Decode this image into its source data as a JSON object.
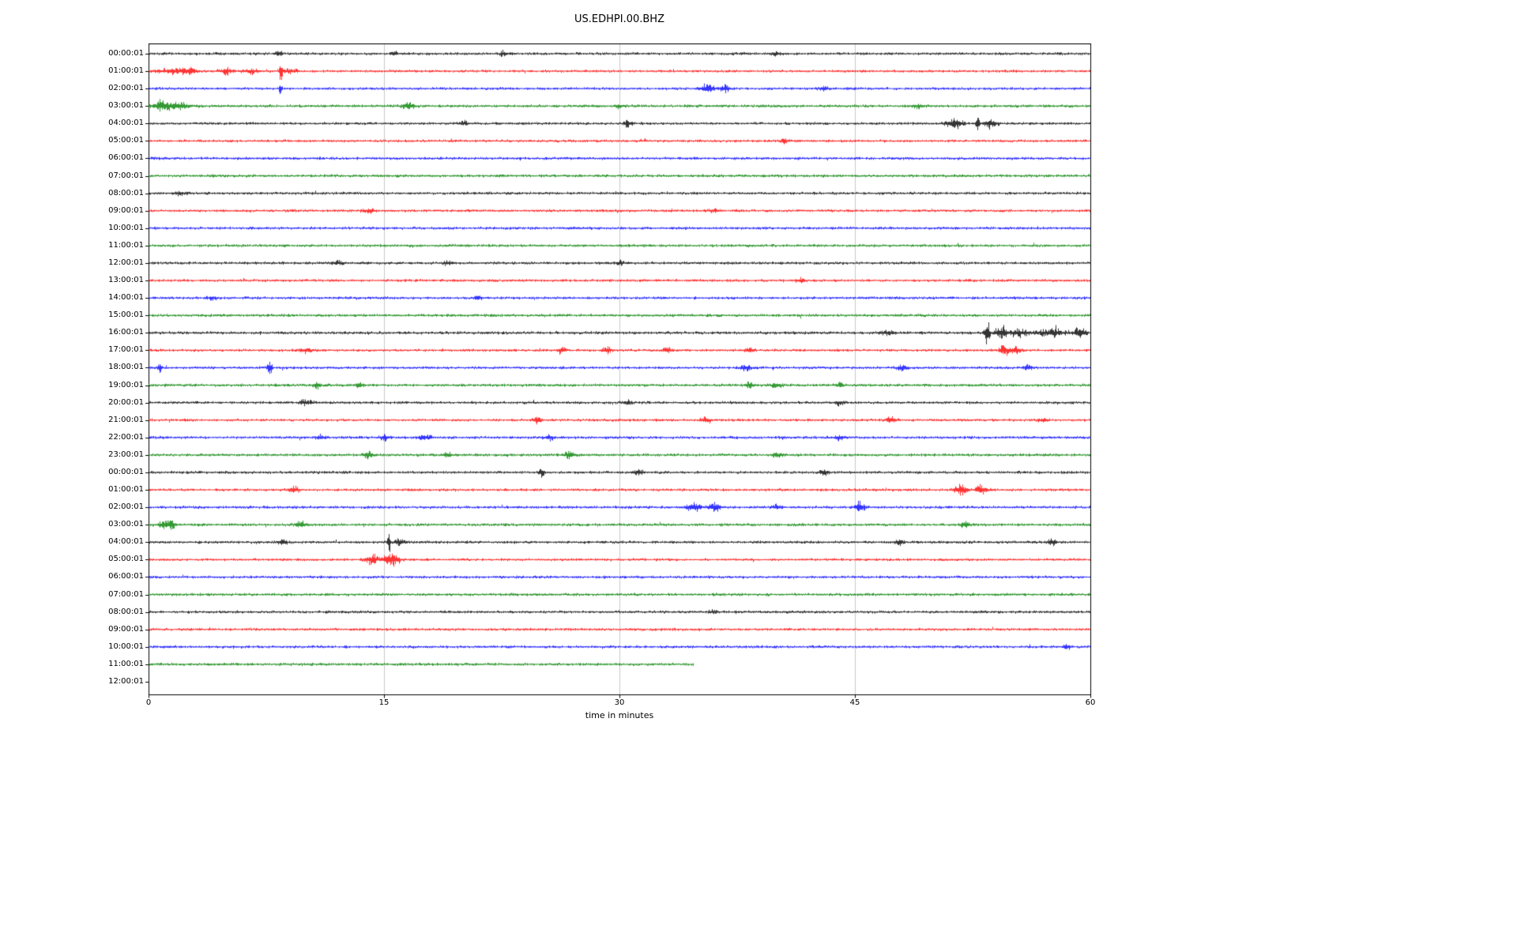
{
  "title": "US.EDHPI.00.BHZ",
  "chart_data": {
    "type": "line",
    "subtype": "seismogram-dayplot",
    "title": "US.EDHPI.00.BHZ",
    "xlabel": "time in minutes",
    "x_range": [
      0,
      60
    ],
    "x_ticks": [
      0,
      15,
      30,
      45,
      60
    ],
    "grid_x": [
      15,
      30,
      45
    ],
    "grid_color": "#c8c8c8",
    "trace_colors_cycle": [
      "#000000",
      "#ff0000",
      "#0000ff",
      "#008000"
    ],
    "rows": [
      {
        "label": "00:00:01",
        "color": "#000000",
        "end_minute": 60,
        "base": 1.2,
        "events": [
          [
            8.3,
            2.5,
            0.2
          ],
          [
            15.6,
            2.2,
            0.2
          ],
          [
            22.6,
            2.2,
            0.2
          ],
          [
            40,
            1.5,
            0.3
          ]
        ]
      },
      {
        "label": "01:00:01",
        "color": "#ff0000",
        "end_minute": 60,
        "base": 1.15,
        "events": [
          [
            1.5,
            2,
            1.2
          ],
          [
            2.7,
            2.5,
            0.4
          ],
          [
            4.9,
            2.5,
            0.4
          ],
          [
            6.5,
            2,
            0.5
          ],
          [
            8.4,
            10,
            0.1
          ],
          [
            9,
            1.5,
            0.5
          ]
        ]
      },
      {
        "label": "02:00:01",
        "color": "#0000ff",
        "end_minute": 60,
        "base": 1.15,
        "events": [
          [
            8.4,
            4,
            0.1
          ],
          [
            35.6,
            4,
            0.4
          ],
          [
            36.7,
            3,
            0.3
          ],
          [
            43,
            1.8,
            0.3
          ]
        ]
      },
      {
        "label": "03:00:01",
        "color": "#008000",
        "end_minute": 60,
        "base": 1.25,
        "events": [
          [
            0.8,
            4,
            0.5
          ],
          [
            1.8,
            3.5,
            0.7
          ],
          [
            16.5,
            3,
            0.4
          ],
          [
            30,
            1.5,
            0.3
          ],
          [
            49,
            1.8,
            0.3
          ]
        ]
      },
      {
        "label": "04:00:01",
        "color": "#000000",
        "end_minute": 60,
        "base": 1.15,
        "events": [
          [
            20,
            1.8,
            0.3
          ],
          [
            30.5,
            2.5,
            0.25
          ],
          [
            51.3,
            3.5,
            0.6
          ],
          [
            52.8,
            10,
            0.12
          ],
          [
            53.6,
            4,
            0.4
          ]
        ]
      },
      {
        "label": "05:00:01",
        "color": "#ff0000",
        "end_minute": 60,
        "base": 1.15,
        "events": [
          [
            40.5,
            1.5,
            0.3
          ]
        ]
      },
      {
        "label": "06:00:01",
        "color": "#0000ff",
        "end_minute": 60,
        "base": 1.2,
        "events": []
      },
      {
        "label": "07:00:01",
        "color": "#008000",
        "end_minute": 60,
        "base": 1.25,
        "events": []
      },
      {
        "label": "08:00:01",
        "color": "#000000",
        "end_minute": 60,
        "base": 1.2,
        "events": [
          [
            2,
            1.5,
            0.3
          ]
        ]
      },
      {
        "label": "09:00:01",
        "color": "#ff0000",
        "end_minute": 60,
        "base": 1.15,
        "events": [
          [
            14,
            1.8,
            0.4
          ],
          [
            36,
            1.5,
            0.3
          ]
        ]
      },
      {
        "label": "10:00:01",
        "color": "#0000ff",
        "end_minute": 60,
        "base": 1.2,
        "events": []
      },
      {
        "label": "11:00:01",
        "color": "#008000",
        "end_minute": 60,
        "base": 1.2,
        "events": []
      },
      {
        "label": "12:00:01",
        "color": "#000000",
        "end_minute": 60,
        "base": 1.2,
        "events": [
          [
            12,
            1.5,
            0.4
          ],
          [
            19,
            1.5,
            0.3
          ],
          [
            30,
            1.4,
            0.3
          ]
        ]
      },
      {
        "label": "13:00:01",
        "color": "#ff0000",
        "end_minute": 60,
        "base": 1.15,
        "events": [
          [
            41.5,
            1.6,
            0.3
          ]
        ]
      },
      {
        "label": "14:00:01",
        "color": "#0000ff",
        "end_minute": 60,
        "base": 1.2,
        "events": [
          [
            4,
            1.5,
            0.3
          ],
          [
            21,
            1.4,
            0.3
          ]
        ]
      },
      {
        "label": "15:00:01",
        "color": "#008000",
        "end_minute": 60,
        "base": 1.25,
        "events": []
      },
      {
        "label": "16:00:01",
        "color": "#000000",
        "end_minute": 60,
        "base": 1.25,
        "events": [
          [
            47,
            2,
            0.4
          ],
          [
            53.4,
            9,
            0.18
          ],
          [
            54.3,
            5,
            0.4
          ],
          [
            55.5,
            3,
            0.6
          ],
          [
            57.5,
            3,
            0.8
          ],
          [
            59.3,
            4,
            0.4
          ]
        ]
      },
      {
        "label": "17:00:01",
        "color": "#ff0000",
        "end_minute": 60,
        "base": 1.15,
        "events": [
          [
            10,
            2,
            0.3
          ],
          [
            26.3,
            2.8,
            0.25
          ],
          [
            29.2,
            2.8,
            0.25
          ],
          [
            33,
            2,
            0.3
          ],
          [
            38.2,
            2.2,
            0.3
          ],
          [
            54.5,
            4.5,
            0.3
          ],
          [
            55.3,
            3,
            0.3
          ]
        ]
      },
      {
        "label": "18:00:01",
        "color": "#0000ff",
        "end_minute": 60,
        "base": 1.2,
        "events": [
          [
            0.7,
            4.5,
            0.15
          ],
          [
            7.7,
            5.5,
            0.15
          ],
          [
            38,
            2.5,
            0.3
          ],
          [
            48,
            2.5,
            0.3
          ],
          [
            56,
            2,
            0.3
          ]
        ]
      },
      {
        "label": "19:00:01",
        "color": "#008000",
        "end_minute": 60,
        "base": 1.25,
        "events": [
          [
            10.7,
            3,
            0.25
          ],
          [
            13.4,
            2.8,
            0.25
          ],
          [
            38.3,
            2.5,
            0.3
          ],
          [
            40,
            2.5,
            0.3
          ],
          [
            44,
            2,
            0.3
          ]
        ]
      },
      {
        "label": "20:00:01",
        "color": "#000000",
        "end_minute": 60,
        "base": 1.2,
        "events": [
          [
            10,
            2,
            0.4
          ],
          [
            30.5,
            2,
            0.3
          ],
          [
            44,
            1.8,
            0.3
          ]
        ]
      },
      {
        "label": "21:00:01",
        "color": "#ff0000",
        "end_minute": 60,
        "base": 1.15,
        "events": [
          [
            24.7,
            3.5,
            0.25
          ],
          [
            35.5,
            2.5,
            0.3
          ],
          [
            47.3,
            3.2,
            0.3
          ],
          [
            57,
            2,
            0.3
          ]
        ]
      },
      {
        "label": "22:00:01",
        "color": "#0000ff",
        "end_minute": 60,
        "base": 1.2,
        "events": [
          [
            11,
            2,
            0.3
          ],
          [
            15,
            2.5,
            0.3
          ],
          [
            17.6,
            2.5,
            0.3
          ],
          [
            25.5,
            2,
            0.3
          ],
          [
            44,
            2,
            0.3
          ]
        ]
      },
      {
        "label": "23:00:01",
        "color": "#008000",
        "end_minute": 60,
        "base": 1.25,
        "events": [
          [
            14,
            3,
            0.25
          ],
          [
            19,
            2.5,
            0.3
          ],
          [
            26.8,
            3.5,
            0.3
          ],
          [
            40,
            2,
            0.3
          ]
        ]
      },
      {
        "label": "00:00:01",
        "color": "#000000",
        "end_minute": 60,
        "base": 1.2,
        "events": [
          [
            25,
            3,
            0.2
          ],
          [
            31.2,
            2.5,
            0.3
          ],
          [
            43,
            1.8,
            0.3
          ]
        ]
      },
      {
        "label": "01:00:01",
        "color": "#ff0000",
        "end_minute": 60,
        "base": 1.15,
        "events": [
          [
            9.3,
            2.5,
            0.3
          ],
          [
            51.7,
            4,
            0.4
          ],
          [
            53,
            4,
            0.35
          ]
        ]
      },
      {
        "label": "02:00:01",
        "color": "#0000ff",
        "end_minute": 60,
        "base": 1.2,
        "events": [
          [
            34.7,
            4,
            0.4
          ],
          [
            36,
            3.5,
            0.4
          ],
          [
            40,
            2,
            0.3
          ],
          [
            45.3,
            4,
            0.3
          ]
        ]
      },
      {
        "label": "03:00:01",
        "color": "#008000",
        "end_minute": 60,
        "base": 1.25,
        "events": [
          [
            1.2,
            4,
            0.5
          ],
          [
            9.7,
            3,
            0.3
          ],
          [
            52,
            3,
            0.3
          ]
        ]
      },
      {
        "label": "04:00:01",
        "color": "#000000",
        "end_minute": 60,
        "base": 1.2,
        "events": [
          [
            8.5,
            2,
            0.3
          ],
          [
            15.3,
            8,
            0.1
          ],
          [
            16,
            3,
            0.3
          ],
          [
            47.8,
            2.5,
            0.25
          ],
          [
            57.5,
            2.5,
            0.3
          ]
        ]
      },
      {
        "label": "05:00:01",
        "color": "#ff0000",
        "end_minute": 60,
        "base": 1.15,
        "events": [
          [
            14.2,
            4,
            0.4
          ],
          [
            15.2,
            6,
            0.3
          ],
          [
            15.7,
            4,
            0.3
          ]
        ]
      },
      {
        "label": "06:00:01",
        "color": "#0000ff",
        "end_minute": 60,
        "base": 1.2,
        "events": []
      },
      {
        "label": "07:00:01",
        "color": "#008000",
        "end_minute": 60,
        "base": 1.25,
        "events": []
      },
      {
        "label": "08:00:01",
        "color": "#000000",
        "end_minute": 60,
        "base": 1.2,
        "events": [
          [
            36,
            1.6,
            0.3
          ]
        ]
      },
      {
        "label": "09:00:01",
        "color": "#ff0000",
        "end_minute": 60,
        "base": 1.15,
        "events": []
      },
      {
        "label": "10:00:01",
        "color": "#0000ff",
        "end_minute": 60,
        "base": 1.2,
        "events": [
          [
            58.5,
            2.2,
            0.2
          ]
        ]
      },
      {
        "label": "11:00:01",
        "color": "#008000",
        "end_minute": 34.7,
        "base": 1.25,
        "events": []
      },
      {
        "label": "12:00:01",
        "color": null,
        "end_minute": 0,
        "base": 0,
        "events": []
      }
    ]
  }
}
